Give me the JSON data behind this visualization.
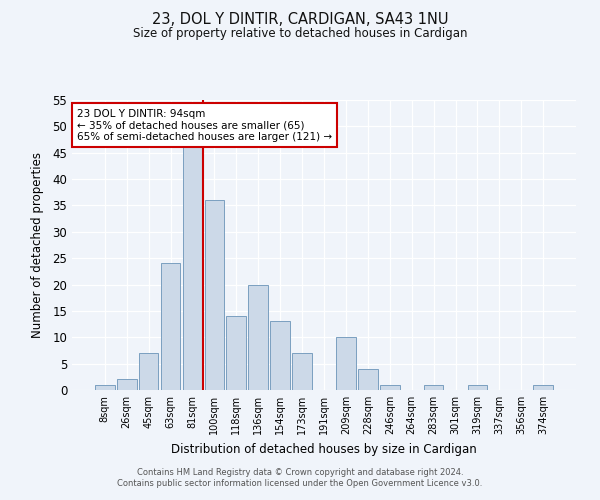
{
  "title": "23, DOL Y DINTIR, CARDIGAN, SA43 1NU",
  "subtitle": "Size of property relative to detached houses in Cardigan",
  "xlabel": "Distribution of detached houses by size in Cardigan",
  "ylabel": "Number of detached properties",
  "bar_labels": [
    "8sqm",
    "26sqm",
    "45sqm",
    "63sqm",
    "81sqm",
    "100sqm",
    "118sqm",
    "136sqm",
    "154sqm",
    "173sqm",
    "191sqm",
    "209sqm",
    "228sqm",
    "246sqm",
    "264sqm",
    "283sqm",
    "301sqm",
    "319sqm",
    "337sqm",
    "356sqm",
    "374sqm"
  ],
  "bar_values": [
    1,
    2,
    7,
    24,
    46,
    36,
    14,
    20,
    13,
    7,
    0,
    10,
    4,
    1,
    0,
    1,
    0,
    1,
    0,
    0,
    1
  ],
  "bar_color": "#ccd9e8",
  "bar_edge_color": "#7a9fc0",
  "ylim": [
    0,
    55
  ],
  "yticks": [
    0,
    5,
    10,
    15,
    20,
    25,
    30,
    35,
    40,
    45,
    50,
    55
  ],
  "vline_x": 4.5,
  "vline_color": "#cc0000",
  "annotation_title": "23 DOL Y DINTIR: 94sqm",
  "annotation_line1": "← 35% of detached houses are smaller (65)",
  "annotation_line2": "65% of semi-detached houses are larger (121) →",
  "annotation_box_color": "#ffffff",
  "annotation_box_edge": "#cc0000",
  "footer1": "Contains HM Land Registry data © Crown copyright and database right 2024.",
  "footer2": "Contains public sector information licensed under the Open Government Licence v3.0.",
  "bg_color": "#f0f4fa",
  "plot_bg_color": "#f0f4fa"
}
